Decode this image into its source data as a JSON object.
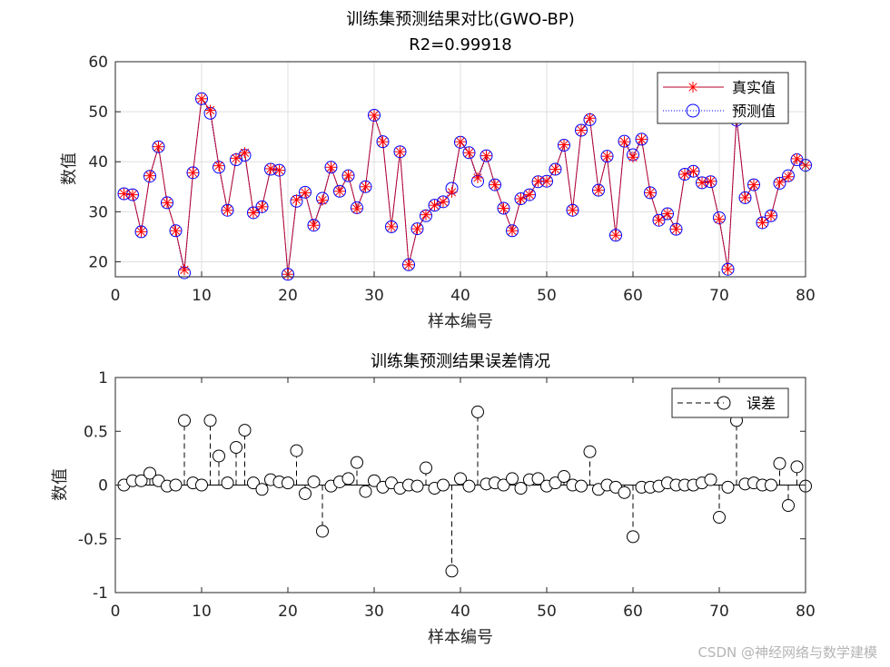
{
  "chart_data": [
    {
      "type": "line",
      "title": "训练集预测结果对比(GWO-BP)",
      "subtitle": "R2=0.99918",
      "xlabel": "样本编号",
      "ylabel": "数值",
      "xlim": [
        0,
        80
      ],
      "ylim": [
        17,
        60
      ],
      "xticks": [
        0,
        10,
        20,
        30,
        40,
        50,
        60,
        70,
        80
      ],
      "yticks": [
        20,
        30,
        40,
        50,
        60
      ],
      "grid": true,
      "legend_position": "top-right",
      "series": [
        {
          "name": "真实值",
          "marker": "asterisk",
          "color": "#ff0000",
          "values": [
            33.6,
            33.4,
            26.0,
            37.2,
            43.0,
            31.8,
            26.2,
            18.4,
            37.8,
            52.6,
            50.3,
            39.2,
            30.3,
            40.7,
            41.8,
            29.8,
            31.0,
            38.6,
            38.3,
            17.5,
            32.4,
            33.8,
            27.3,
            32.3,
            38.9,
            34.1,
            37.3,
            30.6,
            35.0,
            49.3,
            44.0,
            27.0,
            42.0,
            19.4,
            26.6,
            29.4,
            31.3,
            32.0,
            33.9,
            44.0,
            41.8,
            36.8,
            41.2,
            35.4,
            30.7,
            26.2,
            32.6,
            33.4,
            36.1,
            36.1,
            38.5,
            43.4,
            30.3,
            46.3,
            48.7,
            34.3,
            41.1,
            25.3,
            44.0,
            40.9,
            44.5,
            33.8,
            28.3,
            29.6,
            26.5,
            37.5,
            38.1,
            35.8,
            36.1,
            28.5,
            18.5,
            48.9,
            32.8,
            35.4,
            27.8,
            29.2,
            35.9,
            37.0,
            40.6,
            39.3
          ]
        },
        {
          "name": "预测值",
          "marker": "circle",
          "color": "#0000ff",
          "values": [
            33.6,
            33.4,
            26.0,
            37.1,
            43.0,
            31.8,
            26.2,
            17.8,
            37.8,
            52.6,
            49.7,
            38.9,
            30.3,
            40.4,
            41.3,
            29.8,
            31.0,
            38.5,
            38.3,
            17.5,
            32.1,
            33.9,
            27.3,
            32.7,
            38.9,
            34.1,
            37.2,
            30.8,
            35.0,
            49.3,
            44.0,
            27.0,
            42.0,
            19.4,
            26.6,
            29.2,
            31.3,
            32.0,
            34.7,
            43.9,
            41.8,
            36.1,
            41.2,
            35.4,
            30.7,
            26.2,
            32.6,
            33.4,
            36.0,
            36.1,
            38.5,
            43.3,
            30.3,
            46.3,
            48.4,
            34.3,
            41.1,
            25.3,
            44.1,
            41.4,
            44.5,
            33.8,
            28.3,
            29.6,
            26.5,
            37.5,
            38.1,
            35.8,
            36.0,
            28.8,
            18.5,
            48.3,
            32.8,
            35.4,
            27.8,
            29.2,
            35.7,
            37.2,
            40.4,
            39.3
          ]
        }
      ]
    },
    {
      "type": "stem",
      "title": "训练集预测结果误差情况",
      "xlabel": "样本编号",
      "ylabel": "数值",
      "xlim": [
        0,
        80
      ],
      "ylim": [
        -1,
        1
      ],
      "xticks": [
        0,
        10,
        20,
        30,
        40,
        50,
        60,
        70,
        80
      ],
      "yticks": [
        -1,
        -0.5,
        0,
        0.5,
        1
      ],
      "grid": false,
      "legend_position": "top-right",
      "series": [
        {
          "name": "误差",
          "marker": "circle",
          "line_style": "dashed",
          "color": "#000000",
          "values": [
            0.0,
            0.04,
            0.04,
            0.11,
            0.04,
            -0.01,
            0.0,
            0.6,
            0.02,
            0.0,
            0.6,
            0.27,
            0.02,
            0.35,
            0.51,
            0.02,
            -0.04,
            0.05,
            0.03,
            0.02,
            0.32,
            -0.08,
            0.03,
            -0.43,
            -0.01,
            0.03,
            0.06,
            0.21,
            -0.06,
            0.04,
            -0.02,
            0.02,
            -0.03,
            0.0,
            -0.01,
            0.16,
            -0.03,
            0.0,
            -0.8,
            0.06,
            -0.01,
            0.68,
            0.01,
            0.02,
            0.0,
            0.06,
            -0.03,
            0.05,
            0.06,
            -0.01,
            0.02,
            0.08,
            0.0,
            -0.01,
            0.31,
            -0.04,
            0.0,
            -0.02,
            -0.07,
            -0.48,
            -0.02,
            -0.02,
            -0.01,
            0.02,
            0.0,
            0.0,
            0.0,
            0.02,
            0.05,
            -0.3,
            -0.02,
            0.6,
            0.01,
            0.02,
            0.0,
            0.0,
            0.2,
            -0.19,
            0.17,
            -0.01
          ]
        }
      ]
    }
  ],
  "watermark": "CSDN @神经网络与数学建模"
}
